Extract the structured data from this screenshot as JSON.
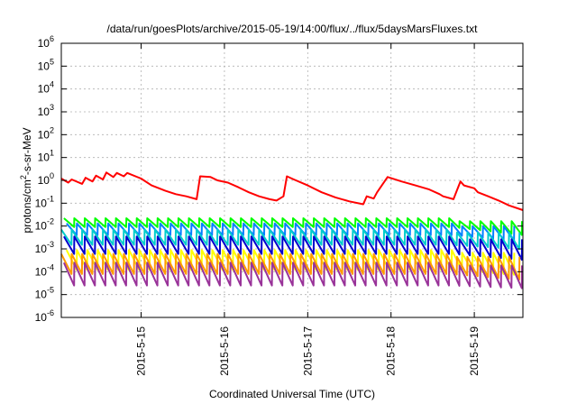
{
  "chart_data": {
    "type": "line",
    "title": "/data/run/goesPlots/archive/2015-05-19/14:00/flux/../flux/5daysMarsFluxes.txt",
    "xlabel": "Coordinated Universal Time (UTC)",
    "ylabel_base": "protons/cm",
    "ylabel_sup": "2",
    "ylabel_rest": "-s-sr-MeV",
    "yscale": "log",
    "ylim": [
      1e-06,
      1000000.0
    ],
    "xlim": [
      "2015-05-14 01:00",
      "2015-05-19 14:00"
    ],
    "grid": true,
    "y_ticks": [
      {
        "value": 1e-06,
        "base": "10",
        "exp": "-6"
      },
      {
        "value": 1e-05,
        "base": "10",
        "exp": "-5"
      },
      {
        "value": 0.0001,
        "base": "10",
        "exp": "-4"
      },
      {
        "value": 0.001,
        "base": "10",
        "exp": "-3"
      },
      {
        "value": 0.01,
        "base": "10",
        "exp": "-2"
      },
      {
        "value": 0.1,
        "base": "10",
        "exp": "-1"
      },
      {
        "value": 1.0,
        "base": "10",
        "exp": "0"
      },
      {
        "value": 10.0,
        "base": "10",
        "exp": "1"
      },
      {
        "value": 100.0,
        "base": "10",
        "exp": "2"
      },
      {
        "value": 1000.0,
        "base": "10",
        "exp": "3"
      },
      {
        "value": 10000.0,
        "base": "10",
        "exp": "4"
      },
      {
        "value": 100000.0,
        "base": "10",
        "exp": "5"
      },
      {
        "value": 1000000.0,
        "base": "10",
        "exp": "6"
      }
    ],
    "x_ticks": [
      {
        "label": "2015-5-15",
        "date": "2015-05-15 00:00"
      },
      {
        "label": "2015-5-16",
        "date": "2015-05-16 00:00"
      },
      {
        "label": "2015-5-17",
        "date": "2015-05-17 00:00"
      },
      {
        "label": "2015-5-18",
        "date": "2015-05-18 00:00"
      },
      {
        "label": "2015-5-19",
        "date": "2015-05-19 00:00"
      }
    ],
    "series": [
      {
        "color": "#ff0000",
        "x": [
          "2015-05-14 01:00",
          "2015-05-14 03:00",
          "2015-05-14 04:00",
          "2015-05-14 07:00",
          "2015-05-14 08:00",
          "2015-05-14 10:00",
          "2015-05-14 11:00",
          "2015-05-14 13:00",
          "2015-05-14 14:00",
          "2015-05-14 16:00",
          "2015-05-14 17:00",
          "2015-05-14 19:00",
          "2015-05-14 20:00",
          "2015-05-15 00:00",
          "2015-05-15 03:00",
          "2015-05-15 07:00",
          "2015-05-15 10:00",
          "2015-05-15 13:00",
          "2015-05-15 16:00",
          "2015-05-15 17:00",
          "2015-05-15 20:00",
          "2015-05-15 22:00",
          "2015-05-16 01:00",
          "2015-05-16 04:00",
          "2015-05-16 07:00",
          "2015-05-16 10:00",
          "2015-05-16 13:00",
          "2015-05-16 15:00",
          "2015-05-16 17:00",
          "2015-05-16 18:00",
          "2015-05-16 20:00",
          "2015-05-17 00:00",
          "2015-05-17 04:00",
          "2015-05-17 08:00",
          "2015-05-17 12:00",
          "2015-05-17 16:00",
          "2015-05-17 17:00",
          "2015-05-17 19:00",
          "2015-05-17 20:00",
          "2015-05-17 23:00",
          "2015-05-18 03:00",
          "2015-05-18 07:00",
          "2015-05-18 11:00",
          "2015-05-18 14:00",
          "2015-05-18 15:00",
          "2015-05-18 18:00",
          "2015-05-18 20:00",
          "2015-05-18 21:00",
          "2015-05-19 00:00",
          "2015-05-19 01:00",
          "2015-05-19 04:00",
          "2015-05-19 07:00",
          "2015-05-19 10:00",
          "2015-05-19 14:00"
        ],
        "values": [
          1.2,
          0.8,
          1.1,
          0.7,
          1.3,
          0.9,
          1.6,
          1.1,
          2.2,
          1.4,
          2.1,
          1.5,
          2.1,
          1.2,
          0.6,
          0.35,
          0.25,
          0.2,
          0.15,
          1.5,
          1.4,
          1.0,
          0.8,
          0.5,
          0.3,
          0.2,
          0.15,
          0.13,
          0.2,
          1.5,
          1.1,
          0.6,
          0.3,
          0.18,
          0.12,
          0.09,
          0.2,
          0.16,
          0.3,
          1.4,
          0.9,
          0.6,
          0.4,
          0.25,
          0.2,
          0.15,
          0.9,
          0.6,
          0.45,
          0.3,
          0.2,
          0.13,
          0.08,
          0.05
        ]
      },
      {
        "color": "#00ff00",
        "peak": 0.022,
        "trough": 0.009,
        "end": 0.0035
      },
      {
        "color": "#0080ff",
        "peak": 0.013,
        "trough": 0.004,
        "end": 0.0018
      },
      {
        "color": "#00cccc",
        "peak": 0.007,
        "trough": 0.0015,
        "end": 0.0009
      },
      {
        "color": "#0000cc",
        "peak": 0.0035,
        "trough": 0.0006,
        "end": 0.0003
      },
      {
        "color": "#ffff00",
        "peak": 0.0009,
        "trough": 0.00012,
        "end": 6e-05
      },
      {
        "color": "#ff9900",
        "peak": 0.0006,
        "trough": 8e-05,
        "end": 4e-05
      },
      {
        "color": "#993399",
        "peak": 0.00025,
        "trough": 2.5e-05,
        "end": 1.8e-05
      }
    ]
  }
}
